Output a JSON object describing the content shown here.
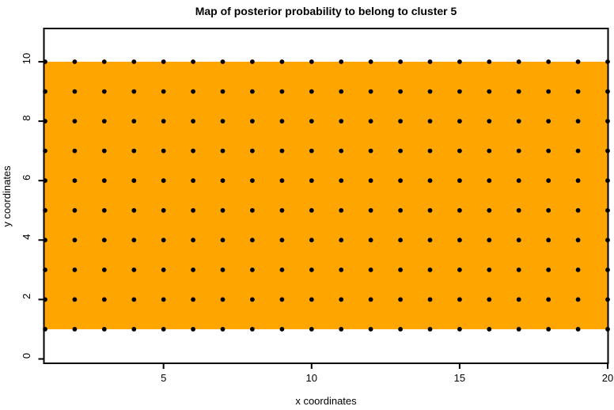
{
  "chart_data": {
    "type": "scatter",
    "title": "Map of posterior probability to belong to cluster  5",
    "xlabel": "x coordinates",
    "ylabel": "y coordinates",
    "xlim": [
      1,
      20
    ],
    "ylim": [
      0,
      10
    ],
    "x_ticks": [
      5,
      10,
      15,
      20
    ],
    "y_ticks": [
      0,
      2,
      4,
      6,
      8,
      10
    ],
    "grid": "off",
    "legend": "none",
    "cluster_region": {
      "x_min": 1,
      "x_max": 20,
      "y_min": 1,
      "y_max": 10,
      "fill": "#FFA500"
    },
    "grid_points": {
      "x_start": 1,
      "x_end": 20,
      "x_step": 1,
      "y_start": 1,
      "y_end": 10,
      "y_step": 1,
      "count": 200,
      "marker": "filled-circle",
      "marker_color": "#000000"
    }
  },
  "colors": {
    "background": "#FFFFFF",
    "region_fill": "#FFA500",
    "marker": "#000000",
    "axis": "#000000"
  }
}
